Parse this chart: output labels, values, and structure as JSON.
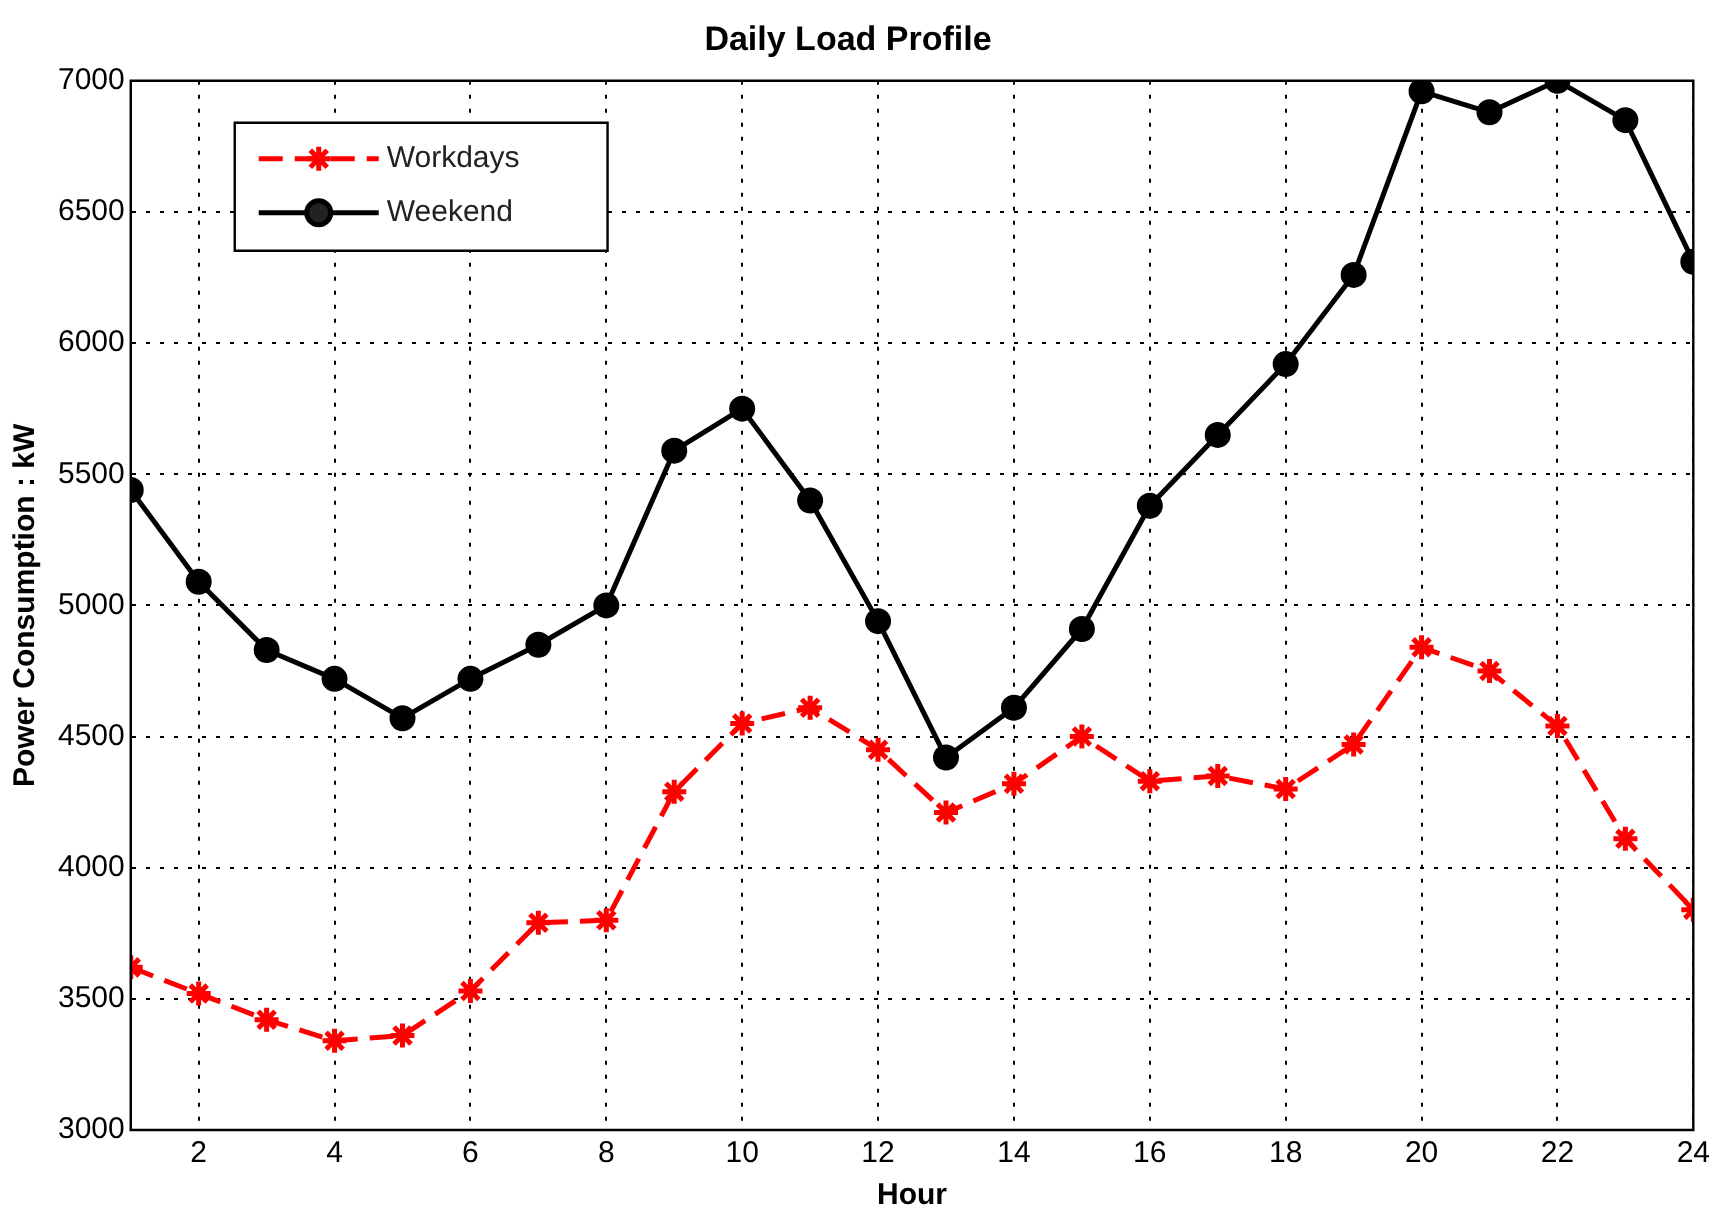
{
  "chart_data": {
    "type": "line",
    "title": "Daily Load Profile",
    "xlabel": "Hour",
    "ylabel": "Power Consumption : kW",
    "x": [
      1,
      2,
      3,
      4,
      5,
      6,
      7,
      8,
      9,
      10,
      11,
      12,
      13,
      14,
      15,
      16,
      17,
      18,
      19,
      20,
      21,
      22,
      23,
      24
    ],
    "series": [
      {
        "name": "Workdays",
        "color": "#ff0000",
        "marker": "cross",
        "line_style": "dashed",
        "values": [
          3620,
          3520,
          3420,
          3340,
          3360,
          3530,
          3790,
          3800,
          4290,
          4550,
          4610,
          4450,
          4210,
          4320,
          4500,
          4330,
          4350,
          4300,
          4470,
          4840,
          4750,
          4540,
          4110,
          3840
        ]
      },
      {
        "name": "Weekend",
        "color": "#000000",
        "marker": "circle",
        "line_style": "solid",
        "values": [
          5440,
          5090,
          4830,
          4720,
          4570,
          4720,
          4850,
          5000,
          5590,
          5750,
          5400,
          4940,
          4420,
          4610,
          4910,
          5380,
          5650,
          5920,
          6260,
          6960,
          6880,
          7000,
          6850,
          6310
        ]
      }
    ],
    "xlim": [
      1,
      24
    ],
    "xticks": [
      2,
      4,
      6,
      8,
      10,
      12,
      14,
      16,
      18,
      20,
      22,
      24
    ],
    "ylim": [
      3000,
      7000
    ],
    "yticks": [
      3000,
      3500,
      4000,
      4500,
      5000,
      5500,
      6000,
      6500,
      7000
    ],
    "grid": true,
    "legend": "top left"
  }
}
